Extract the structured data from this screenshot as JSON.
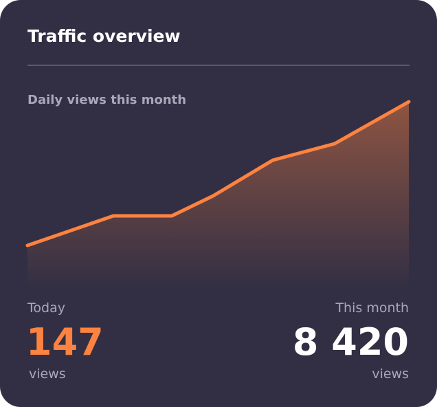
{
  "header": {
    "title": "Traffic overview"
  },
  "chart_data": {
    "type": "line",
    "subtitle": "Daily views this month",
    "color": "#ff8340",
    "x": [
      0,
      125,
      210,
      270,
      357,
      447,
      555
    ],
    "xlim": [
      0,
      555
    ],
    "values": [
      63,
      106,
      106,
      135,
      187,
      211,
      272
    ],
    "ylim": [
      0,
      290
    ]
  },
  "stats": {
    "today": {
      "label": "Today",
      "value": "147",
      "unit": "views"
    },
    "month": {
      "label": "This month",
      "value": "8 420",
      "unit": "views"
    }
  }
}
